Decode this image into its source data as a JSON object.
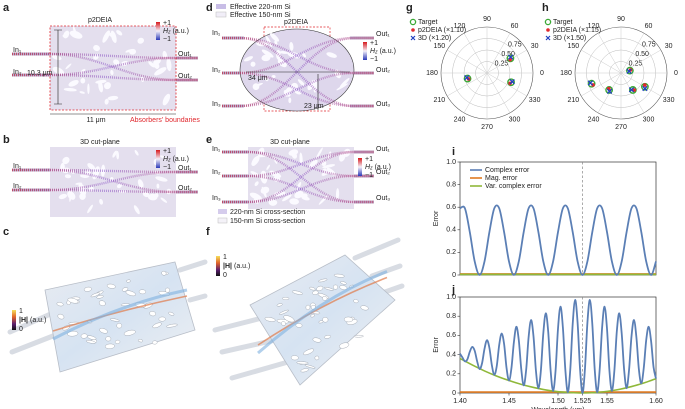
{
  "panel_labels": [
    "a",
    "b",
    "c",
    "d",
    "e",
    "f",
    "g",
    "h",
    "i",
    "j"
  ],
  "a": {
    "title": "p2DEIA",
    "inputs": [
      "In₁",
      "In₂"
    ],
    "outputs": [
      "Out₁",
      "Out₂"
    ],
    "width_label": "10.3 μm",
    "length_label": "11 μm",
    "boundary_label": "Absorbers' boundaries",
    "colorbar": {
      "max": "+1",
      "symbol": "H",
      "sub": "z",
      "unit": "(a.u.)",
      "min": "−1"
    }
  },
  "b": {
    "title": "3D cut-plane",
    "inputs": [
      "In₁",
      "In₂"
    ],
    "outputs": [
      "Out₁",
      "Out₂"
    ],
    "colorbar": {
      "max": "+1",
      "symbol": "H",
      "sub": "z",
      "unit": "(a.u.)",
      "min": "−1"
    }
  },
  "c": {
    "colorbar": {
      "max": "1",
      "symbol": "|H|",
      "unit": "(a.u.)",
      "min": "0"
    }
  },
  "d": {
    "legend": [
      "Effective 220-nm Si",
      "Effective 150-nm Si"
    ],
    "title": "p2DEIA",
    "inputs": [
      "In₁",
      "In₂",
      "In₃"
    ],
    "outputs": [
      "Out₁",
      "Out₂",
      "Out₃"
    ],
    "width_label": "34 μm",
    "height_label": "23 μm",
    "colorbar": {
      "max": "+1",
      "symbol": "H",
      "sub": "z",
      "unit": "(a.u.)",
      "min": "−1"
    }
  },
  "e": {
    "title": "3D cut-plane",
    "inputs": [
      "In₁",
      "In₂",
      "In₃"
    ],
    "outputs": [
      "Out₁",
      "Out₂",
      "Out₃"
    ],
    "legend": [
      "220-nm Si cross-section",
      "150-nm Si cross-section"
    ],
    "colorbar": {
      "max": "+1",
      "symbol": "H",
      "sub": "z",
      "unit": "(a.u.)",
      "min": "−1"
    }
  },
  "f": {
    "colorbar": {
      "max": "1",
      "symbol": "|H|",
      "unit": "(a.u.)",
      "min": "0"
    }
  },
  "chart_data": [
    {
      "type": "polar",
      "rlim": [
        0,
        1
      ],
      "rticks": [
        0.25,
        {
          "value": 0.5,
          "label": "0.50"
        },
        0.75
      ],
      "thetaticks": [
        0,
        30,
        60,
        90,
        120,
        150,
        180,
        210,
        240,
        270,
        300,
        330
      ],
      "series": [
        {
          "name": "Target",
          "color": "#3aa935",
          "marker": "circle-open",
          "theta": [
            32,
            339,
            196
          ],
          "values": [
            0.6,
            0.56,
            0.44
          ]
        },
        {
          "name": "p2DEIA (×1.10)",
          "color": "#e0282e",
          "marker": "dot",
          "theta": [
            30,
            336,
            198
          ],
          "values": [
            0.58,
            0.55,
            0.42
          ]
        },
        {
          "name": "3D (×1.20)",
          "color": "#1f3fbf",
          "marker": "x",
          "theta": [
            34,
            341,
            193
          ],
          "values": [
            0.62,
            0.58,
            0.45
          ]
        }
      ]
    },
    {
      "type": "polar",
      "rlim": [
        0,
        1
      ],
      "rticks": [
        0.25,
        {
          "value": 0.5,
          "label": "0.50"
        },
        0.75
      ],
      "thetaticks": [
        0,
        30,
        60,
        90,
        120,
        150,
        180,
        210,
        240,
        270,
        300,
        330
      ],
      "series": [
        {
          "name": "Target",
          "color": "#3aa935",
          "marker": "circle-open",
          "theta": [
            15,
            200,
            235,
            305,
            330
          ],
          "values": [
            0.2,
            0.68,
            0.45,
            0.45,
            0.6
          ]
        },
        {
          "name": "p2DEIA (×1.15)",
          "color": "#e0282e",
          "marker": "dot",
          "theta": [
            18,
            203,
            232,
            308,
            333
          ],
          "values": [
            0.22,
            0.66,
            0.43,
            0.47,
            0.58
          ]
        },
        {
          "name": "3D (×1.50)",
          "color": "#1f3fbf",
          "marker": "x",
          "theta": [
            12,
            198,
            238,
            302,
            327
          ],
          "values": [
            0.18,
            0.7,
            0.47,
            0.43,
            0.62
          ]
        }
      ]
    },
    {
      "type": "line",
      "y_label": "Error",
      "xlim": [
        1.4,
        1.6
      ],
      "ylim": [
        0,
        1
      ],
      "yticks": [
        0,
        0.2,
        0.4,
        0.6,
        0.8,
        {
          "value": 1,
          "label": "1.0"
        }
      ],
      "vline": 1.525,
      "series": [
        {
          "name": "Complex error",
          "color": "#5b7fb5",
          "x": [
            1.4,
            1.405,
            1.41,
            1.415,
            1.42,
            1.425,
            1.43,
            1.435,
            1.44,
            1.445,
            1.45,
            1.455,
            1.46,
            1.465,
            1.47,
            1.475,
            1.48,
            1.485,
            1.49,
            1.495,
            1.5,
            1.505,
            1.51,
            1.515,
            1.52,
            1.525,
            1.53,
            1.535,
            1.54,
            1.545,
            1.55,
            1.555,
            1.56,
            1.565,
            1.57,
            1.575,
            1.58,
            1.585,
            1.59,
            1.595,
            1.6
          ],
          "values": [
            0.59,
            0.59,
            0.38,
            0.12,
            0,
            0.12,
            0.38,
            0.59,
            0.59,
            0.38,
            0.12,
            0,
            0.12,
            0.38,
            0.59,
            0.59,
            0.38,
            0.12,
            0,
            0.12,
            0.38,
            0.59,
            0.59,
            0.38,
            0.12,
            0,
            0.12,
            0.38,
            0.59,
            0.59,
            0.38,
            0.12,
            0,
            0.12,
            0.38,
            0.59,
            0.59,
            0.38,
            0.12,
            0,
            0.12
          ]
        },
        {
          "name": "Mag. error",
          "color": "#e07b22",
          "x": [
            1.4,
            1.6
          ],
          "values": [
            0.01,
            0.01
          ]
        },
        {
          "name": "Var. complex error",
          "color": "#8fb83a",
          "x": [
            1.4,
            1.6
          ],
          "values": [
            0.005,
            0.005
          ]
        }
      ]
    },
    {
      "type": "line",
      "x_label": "Wavelength (μm)",
      "y_label": "Error",
      "xlim": [
        1.4,
        1.6
      ],
      "ylim": [
        0,
        1
      ],
      "xticks": [
        {
          "value": 1.4,
          "label": "1.40"
        },
        1.45,
        {
          "value": 1.5,
          "label": "1.50"
        },
        1.525,
        1.55,
        {
          "value": 1.6,
          "label": "1.60"
        }
      ],
      "yticks": [
        0,
        0.2,
        0.4,
        0.6,
        0.8,
        {
          "value": 1,
          "label": "1.0"
        }
      ],
      "vline": 1.525,
      "series": [
        {
          "color": "#5b7fb5",
          "x": [
            1.4,
            1.4025,
            1.405,
            1.4075,
            1.41,
            1.4125,
            1.415,
            1.4175,
            1.42,
            1.4225,
            1.425,
            1.4275,
            1.43,
            1.4325,
            1.435,
            1.4375,
            1.44,
            1.4425,
            1.445,
            1.4475,
            1.45,
            1.4525,
            1.455,
            1.4575,
            1.46,
            1.4625,
            1.465,
            1.4675,
            1.47,
            1.4725,
            1.475,
            1.4775,
            1.48,
            1.4825,
            1.485,
            1.4875,
            1.49,
            1.4925,
            1.495,
            1.4975,
            1.5,
            1.5025,
            1.505,
            1.5075,
            1.51,
            1.5125,
            1.515,
            1.5175,
            1.52,
            1.5225,
            1.525,
            1.5275,
            1.53,
            1.5325,
            1.535,
            1.5375,
            1.54,
            1.5425,
            1.545,
            1.5475,
            1.55,
            1.5525,
            1.555,
            1.5575,
            1.56,
            1.5625,
            1.565,
            1.5675,
            1.57,
            1.5725,
            1.575,
            1.5775,
            1.58,
            1.5825,
            1.585,
            1.5875,
            1.59,
            1.5925,
            1.595,
            1.5975,
            1.6
          ],
          "values": [
            0.41,
            0.37,
            0.33,
            0.35,
            0.43,
            0.48,
            0.44,
            0.33,
            0.25,
            0.31,
            0.46,
            0.55,
            0.47,
            0.29,
            0.19,
            0.28,
            0.5,
            0.62,
            0.51,
            0.26,
            0.13,
            0.26,
            0.53,
            0.69,
            0.55,
            0.25,
            0.08,
            0.24,
            0.58,
            0.76,
            0.59,
            0.23,
            0.05,
            0.23,
            0.62,
            0.83,
            0.64,
            0.23,
            0.02,
            0.23,
            0.67,
            0.9,
            0.68,
            0.24,
            0.01,
            0.24,
            0.72,
            0.97,
            0.73,
            0.25,
            0,
            0.25,
            0.73,
            0.97,
            0.72,
            0.24,
            0.01,
            0.24,
            0.68,
            0.9,
            0.67,
            0.23,
            0.02,
            0.23,
            0.64,
            0.83,
            0.62,
            0.24,
            0.05,
            0.24,
            0.59,
            0.76,
            0.58,
            0.25,
            0.1,
            0.26,
            0.55,
            0.69,
            0.54,
            0.27,
            0.15
          ]
        },
        {
          "color": "#e07b22",
          "x": [
            1.4,
            1.6
          ],
          "values": [
            0.01,
            0.01
          ]
        },
        {
          "color": "#8fb83a",
          "x": [
            1.4,
            1.4125,
            1.425,
            1.4375,
            1.45,
            1.4625,
            1.475,
            1.4875,
            1.5,
            1.5125,
            1.525,
            1.5375,
            1.55,
            1.5625,
            1.575,
            1.5875,
            1.6
          ],
          "values": [
            0.36,
            0.292,
            0.23,
            0.176,
            0.13,
            0.09,
            0.058,
            0.032,
            0.014,
            0.004,
            0,
            0.004,
            0.017,
            0.038,
            0.067,
            0.104,
            0.15
          ]
        }
      ]
    }
  ]
}
